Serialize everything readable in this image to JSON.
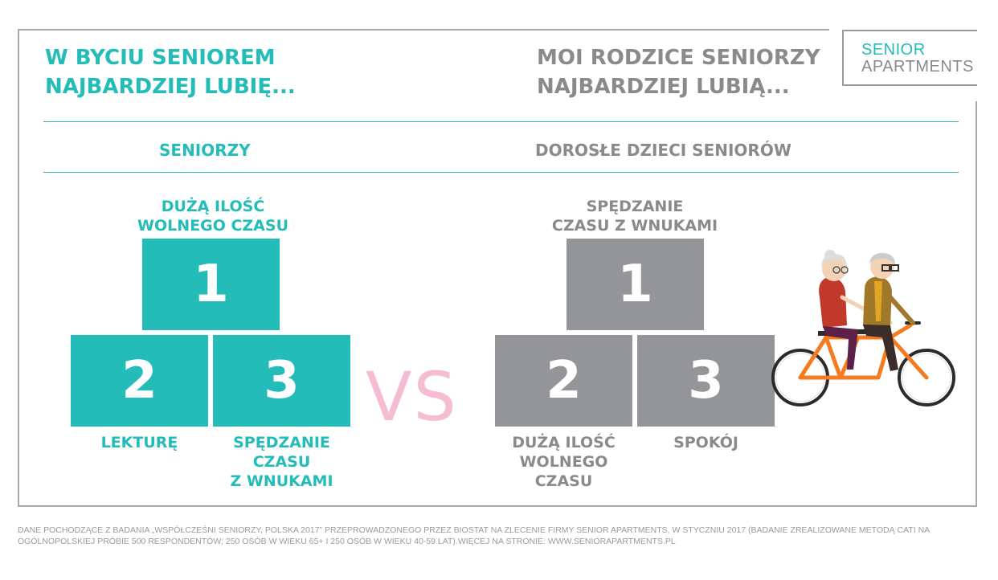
{
  "logo": {
    "line1": "SENIOR",
    "line2": "APARTMENTS"
  },
  "left": {
    "heading_line1": "W BYCIU SENIOREM",
    "heading_line2": "NAJBARDZIEJ LUBIĘ...",
    "subheading": "SENIORZY",
    "top_label_line1": "DUŻĄ ILOŚĆ",
    "top_label_line2": "WOLNEGO CZASU",
    "rank1": "1",
    "rank2": "2",
    "rank3": "3",
    "label2": "LEKTURĘ",
    "label3_line1": "SPĘDZANIE",
    "label3_line2": "CZASU",
    "label3_line3": "Z WNUKAMI"
  },
  "right": {
    "heading_line1": "MOI RODZICE SENIORZY",
    "heading_line2": "NAJBARDZIEJ LUBIĄ...",
    "subheading": "DOROSŁE DZIECI SENIORÓW",
    "top_label_line1": "SPĘDZANIE",
    "top_label_line2": "CZASU Z WNUKAMI",
    "rank1": "1",
    "rank2": "2",
    "rank3": "3",
    "label2_line1": "DUŻĄ ILOŚĆ",
    "label2_line2": "WOLNEGO",
    "label2_line3": "CZASU",
    "label3": "SPOKÓJ"
  },
  "vs": "VS",
  "footer_line1": "DANE POCHODZĄCE Z BADANIA „WSPÓŁCZEŚNI SENIORZY, POLSKA 2017” PRZEPROWADZONEGO PRZEZ BIOSTAT NA ZLECENIE FIRMY SENIOR APARTMENTS, W STYCZNIU 2017 (BADANIE ZREALIZOWANE METODĄ CATI NA",
  "footer_line2": "OGÓLNOPOLSKIEJ PRÓBIE 500 RESPONDENTÓW; 250 OSÓB W WIEKU 65+ I 250 OSÓB W WIEKU 40-59 LAT).WIĘCEJ NA STRONIE: WWW.SENIORAPARTMENTS.PL",
  "colors": {
    "teal": "#23bcb8",
    "gray": "#939598",
    "pink": "#f6bcd4",
    "bike": "#f47b20"
  },
  "illustration": "tandem-bicycle-seniors-illustration"
}
